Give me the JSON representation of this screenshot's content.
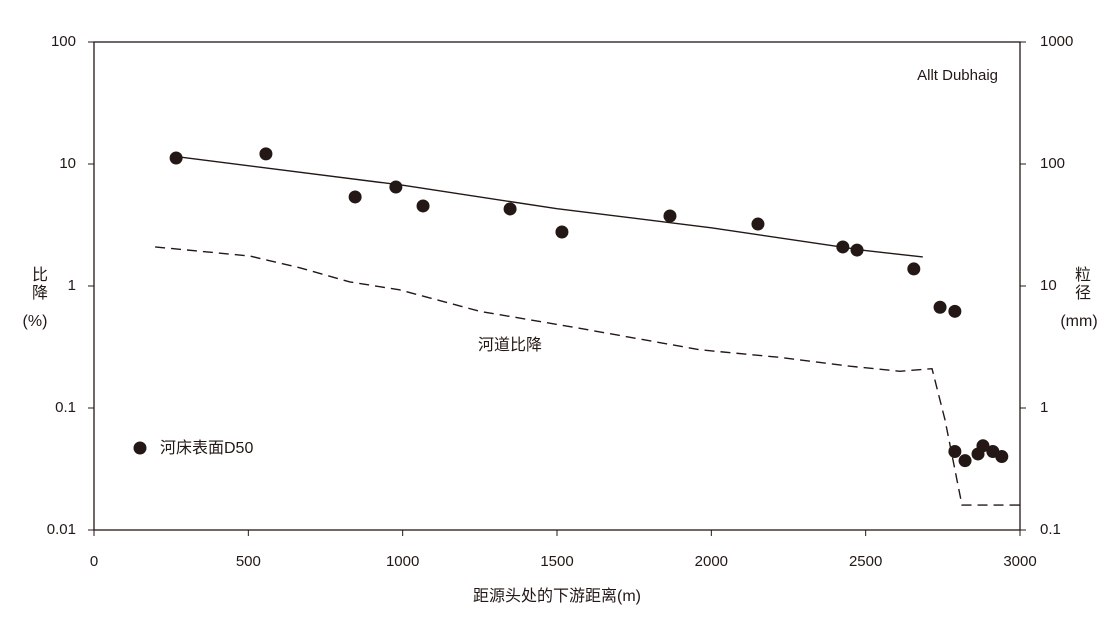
{
  "chart_data": {
    "type": "line",
    "annotation": "Allt Dubhaig",
    "xlabel": "距源头处的下游距离(m)",
    "ylabel": "比降",
    "yunit": "(%)",
    "y2label": "粒径",
    "y2unit": "(mm)",
    "xlim": [
      0,
      3000
    ],
    "xticks": [
      0,
      500,
      1000,
      1500,
      2000,
      2500,
      3000
    ],
    "ylim": [
      0.01,
      100
    ],
    "yticks": [
      0.01,
      0.1,
      1,
      10,
      100
    ],
    "y2lim": [
      0.1,
      1000
    ],
    "y2ticks": [
      0.1,
      1,
      10,
      100,
      1000
    ],
    "ylog": true,
    "legend": "lower left",
    "series": [
      {
        "name": "河床表面D50",
        "axis": "y2",
        "style": "markers",
        "color": "#231815",
        "x": [
          266,
          557,
          846,
          978,
          1066,
          1348,
          1516,
          1866,
          2151,
          2426,
          2472,
          2656,
          2741,
          2789,
          2789,
          2822,
          2864,
          2880,
          2912,
          2941
        ],
        "values": [
          112,
          121,
          53.7,
          64.8,
          45.3,
          42.8,
          27.7,
          37.5,
          32.2,
          20.9,
          19.7,
          13.8,
          6.7,
          6.2,
          0.44,
          0.37,
          0.42,
          0.49,
          0.44,
          0.4
        ]
      },
      {
        "axis": "y2",
        "style": "solid",
        "color": "#231815",
        "x": [
          266,
          1000,
          1500,
          2000,
          2500,
          2685
        ],
        "values": [
          115,
          67,
          43,
          30,
          19.5,
          17.3
        ]
      },
      {
        "name": "河道比降",
        "axis": "y",
        "style": "dashed",
        "color": "#231815",
        "x": [
          198,
          505,
          667,
          829,
          990,
          1250,
          1574,
          1963,
          2222,
          2449,
          2611,
          2715,
          2757,
          2812,
          3000
        ],
        "values": [
          2.09,
          1.76,
          1.41,
          1.08,
          0.93,
          0.62,
          0.45,
          0.3,
          0.26,
          0.22,
          0.2,
          0.21,
          0.08,
          0.016,
          0.016
        ]
      }
    ]
  }
}
